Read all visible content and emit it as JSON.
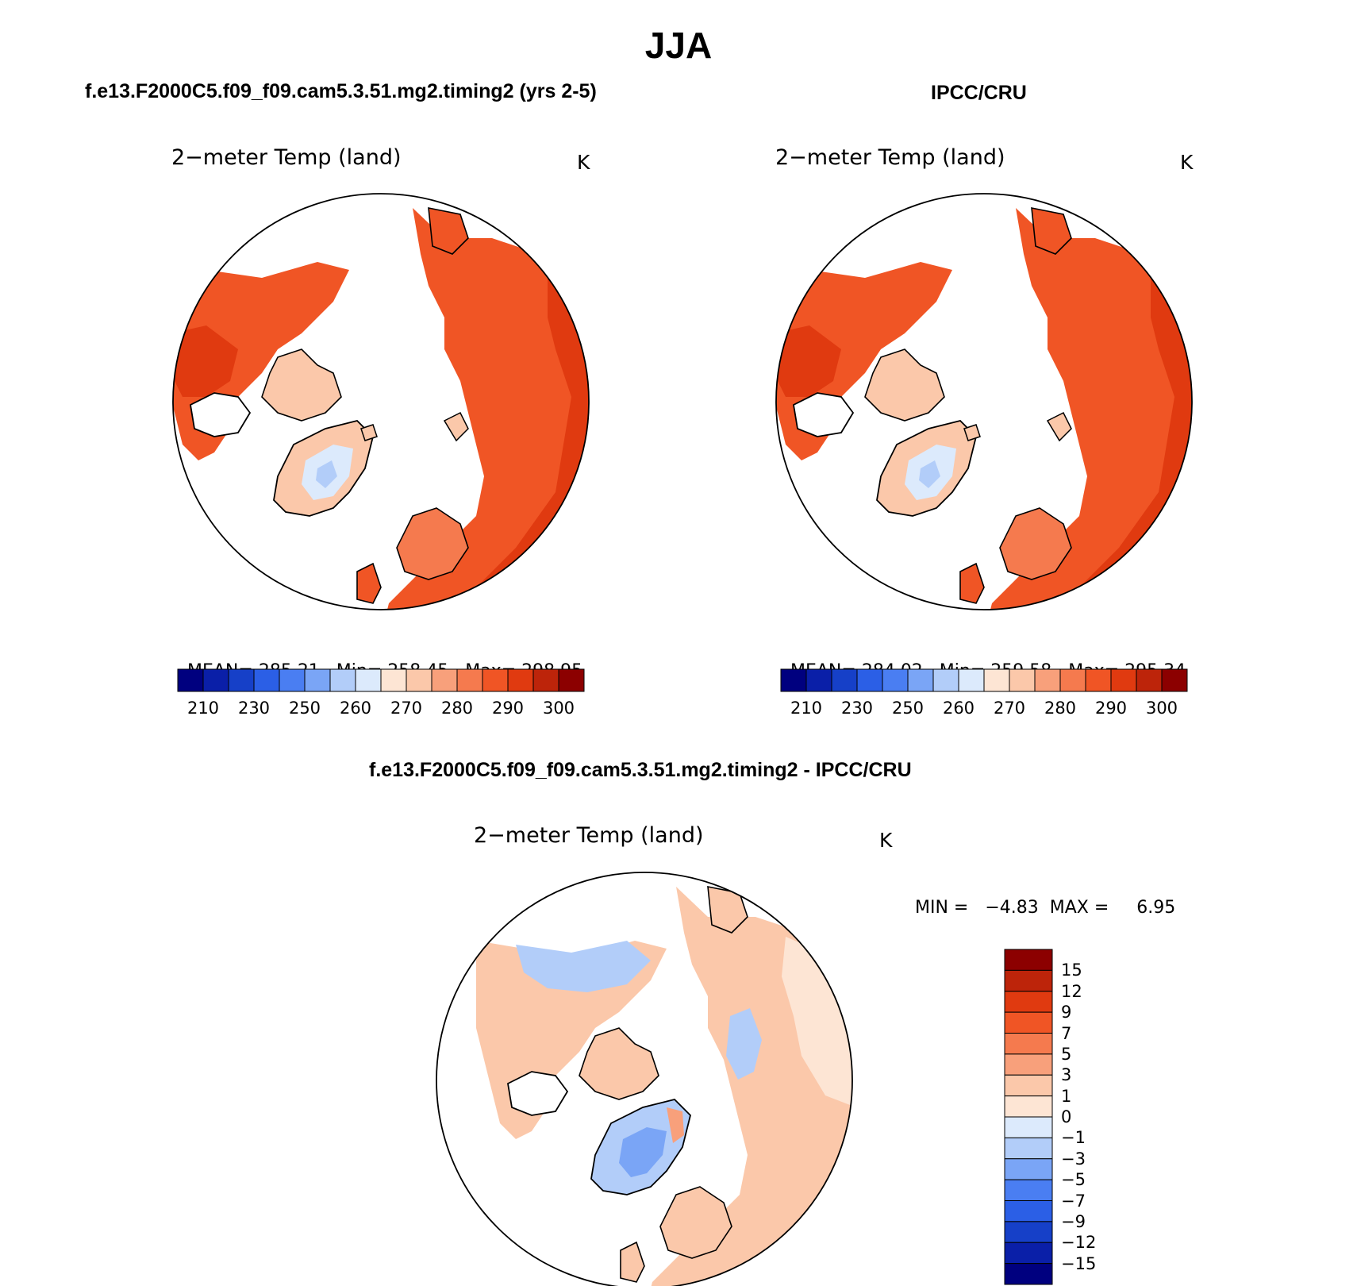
{
  "title": "JJA",
  "panels": [
    {
      "id": "model",
      "header": "f.e13.F2000C5.f09_f09.cam5.3.51.mg2.timing2 (yrs 2-5)",
      "variable": "2−meter Temp (land)",
      "unit": "K",
      "stats": {
        "mean_label": "MEAN=",
        "mean": "285.21",
        "min_label": "Min=",
        "min": "258.45",
        "max_label": "Max=",
        "max": "298.95"
      }
    },
    {
      "id": "obs",
      "header": "IPCC/CRU",
      "variable": "2−meter Temp (land)",
      "unit": "K",
      "stats": {
        "mean_label": "MEAN=",
        "mean": "284.02",
        "min_label": "Min=",
        "min": "259.58",
        "max_label": "Max=",
        "max": "295.34"
      }
    }
  ],
  "abs_colorbar": {
    "colors": [
      "#00007f",
      "#0a1fa8",
      "#1640c8",
      "#2b5fe6",
      "#4a7ef2",
      "#7aa5f6",
      "#b2cdf9",
      "#dceafc",
      "#fde5d4",
      "#fbc8aa",
      "#f8a07b",
      "#f57a4e",
      "#f05525",
      "#e03a10",
      "#bd240a",
      "#8c0000"
    ],
    "ticks": [
      "210",
      "230",
      "250",
      "260",
      "270",
      "280",
      "290",
      "300"
    ]
  },
  "diff_panel": {
    "header": "f.e13.F2000C5.f09_f09.cam5.3.51.mg2.timing2 - IPCC/CRU",
    "variable": "2−meter Temp (land)",
    "unit": "K",
    "minmax": "MIN =   −4.83  MAX =     6.95",
    "colorbar": {
      "colors": [
        "#8c0000",
        "#bd240a",
        "#e03a10",
        "#f05525",
        "#f57a4e",
        "#f8a07b",
        "#fbc8aa",
        "#fde5d4",
        "#dceafc",
        "#b2cdf9",
        "#7aa5f6",
        "#4a7ef2",
        "#2b5fe6",
        "#1640c8",
        "#0a1fa8",
        "#00007f"
      ],
      "ticks": [
        "15",
        "12",
        "9",
        "7",
        "5",
        "3",
        "1",
        "0",
        "−1",
        "−3",
        "−5",
        "−7",
        "−9",
        "−12",
        "−15"
      ]
    }
  },
  "map_colors": {
    "model_warm": "#f05525",
    "model_hot": "#e03a10",
    "model_cool": "#f57a4e",
    "model_ice": "#dceafc",
    "model_ice2": "#b2cdf9",
    "model_coast": "#fbc8aa",
    "obs_warm": "#f05525",
    "obs_hot": "#e03a10",
    "obs_cool": "#f57a4e",
    "obs_ice": "#dceafc",
    "obs_ice2": "#b2cdf9",
    "obs_coast": "#fbc8aa",
    "diff_warm": "#fbc8aa",
    "diff_light": "#fde5d4",
    "diff_cool": "#b2cdf9",
    "diff_cold": "#7aa5f6",
    "diff_mild": "#f8a07b"
  }
}
